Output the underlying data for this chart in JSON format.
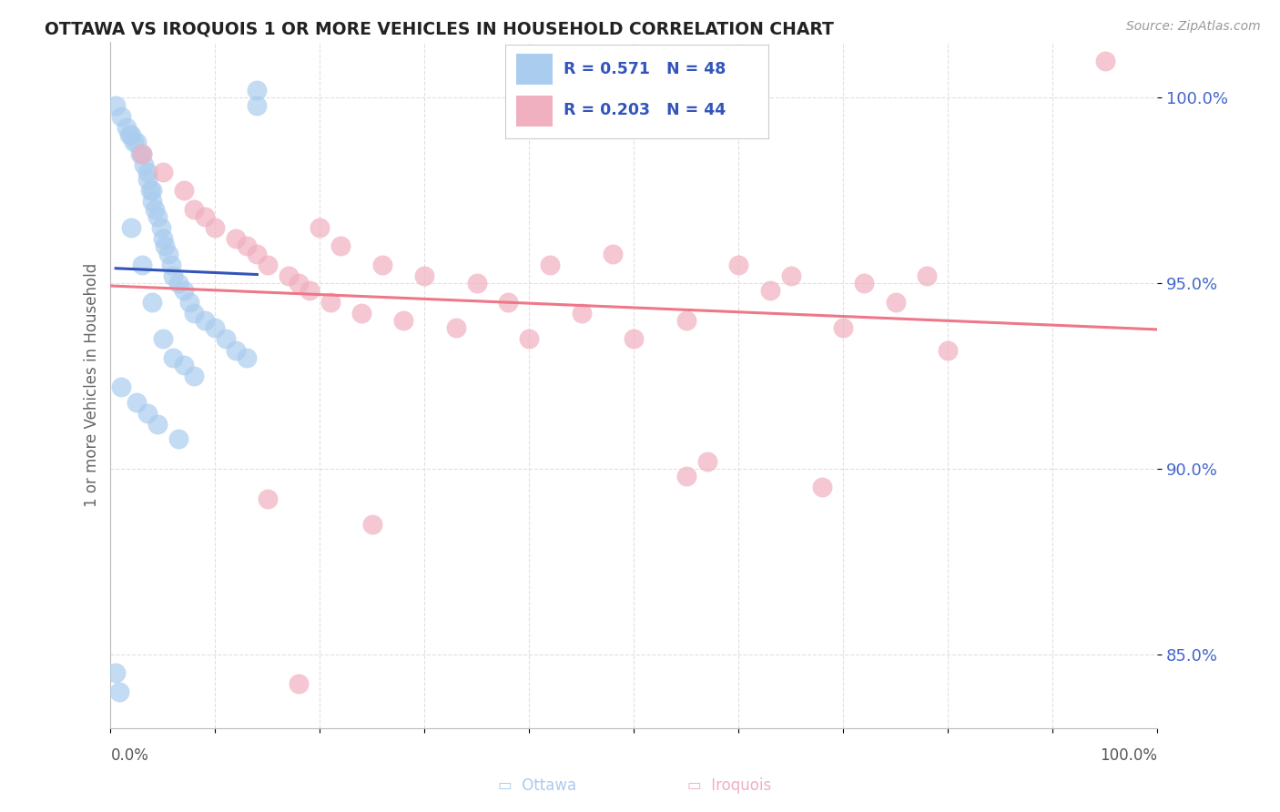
{
  "title": "OTTAWA VS IROQUOIS 1 OR MORE VEHICLES IN HOUSEHOLD CORRELATION CHART",
  "source": "Source: ZipAtlas.com",
  "ylabel": "1 or more Vehicles in Household",
  "xlim": [
    0,
    100
  ],
  "ylim": [
    83.0,
    101.5
  ],
  "yticks": [
    85.0,
    90.0,
    95.0,
    100.0
  ],
  "ytick_labels": [
    "85.0%",
    "90.0%",
    "95.0%",
    "100.0%"
  ],
  "legend_r_ottawa": "R = 0.571",
  "legend_n_ottawa": "N = 48",
  "legend_r_iroquois": "R = 0.203",
  "legend_n_iroquois": "N = 44",
  "ottawa_fill": "#aaccee",
  "iroquois_fill": "#f0b0c0",
  "ottawa_line_color": "#3355bb",
  "iroquois_line_color": "#ee7788",
  "background_color": "#ffffff",
  "grid_color": "#dddddd",
  "ottawa_x": [
    0.5,
    1.0,
    1.5,
    1.8,
    2.0,
    2.2,
    2.5,
    2.8,
    3.0,
    3.2,
    3.5,
    3.5,
    3.8,
    4.0,
    4.0,
    4.2,
    4.5,
    4.8,
    5.0,
    5.2,
    5.5,
    5.8,
    6.0,
    6.5,
    7.0,
    7.5,
    8.0,
    9.0,
    10.0,
    11.0,
    12.0,
    13.0,
    14.0,
    2.0,
    3.0,
    4.0,
    5.0,
    6.0,
    7.0,
    8.0,
    1.0,
    2.5,
    3.5,
    4.5,
    6.5,
    0.5,
    0.8,
    14.0
  ],
  "ottawa_y": [
    99.8,
    99.5,
    99.2,
    99.0,
    99.0,
    98.8,
    98.8,
    98.5,
    98.5,
    98.2,
    98.0,
    97.8,
    97.5,
    97.5,
    97.2,
    97.0,
    96.8,
    96.5,
    96.2,
    96.0,
    95.8,
    95.5,
    95.2,
    95.0,
    94.8,
    94.5,
    94.2,
    94.0,
    93.8,
    93.5,
    93.2,
    93.0,
    100.2,
    96.5,
    95.5,
    94.5,
    93.5,
    93.0,
    92.8,
    92.5,
    92.2,
    91.8,
    91.5,
    91.2,
    90.8,
    84.5,
    84.0,
    99.8
  ],
  "iroquois_x": [
    3.0,
    5.0,
    7.0,
    8.0,
    9.0,
    10.0,
    12.0,
    13.0,
    14.0,
    15.0,
    17.0,
    18.0,
    19.0,
    20.0,
    21.0,
    22.0,
    24.0,
    26.0,
    28.0,
    30.0,
    33.0,
    35.0,
    38.0,
    40.0,
    42.0,
    45.0,
    48.0,
    50.0,
    55.0,
    57.0,
    60.0,
    63.0,
    65.0,
    68.0,
    70.0,
    72.0,
    75.0,
    78.0,
    80.0,
    55.0,
    15.0,
    25.0,
    18.0,
    95.0
  ],
  "iroquois_y": [
    98.5,
    98.0,
    97.5,
    97.0,
    96.8,
    96.5,
    96.2,
    96.0,
    95.8,
    95.5,
    95.2,
    95.0,
    94.8,
    96.5,
    94.5,
    96.0,
    94.2,
    95.5,
    94.0,
    95.2,
    93.8,
    95.0,
    94.5,
    93.5,
    95.5,
    94.2,
    95.8,
    93.5,
    94.0,
    90.2,
    95.5,
    94.8,
    95.2,
    89.5,
    93.8,
    95.0,
    94.5,
    95.2,
    93.2,
    89.8,
    89.2,
    88.5,
    84.2,
    101.0
  ]
}
